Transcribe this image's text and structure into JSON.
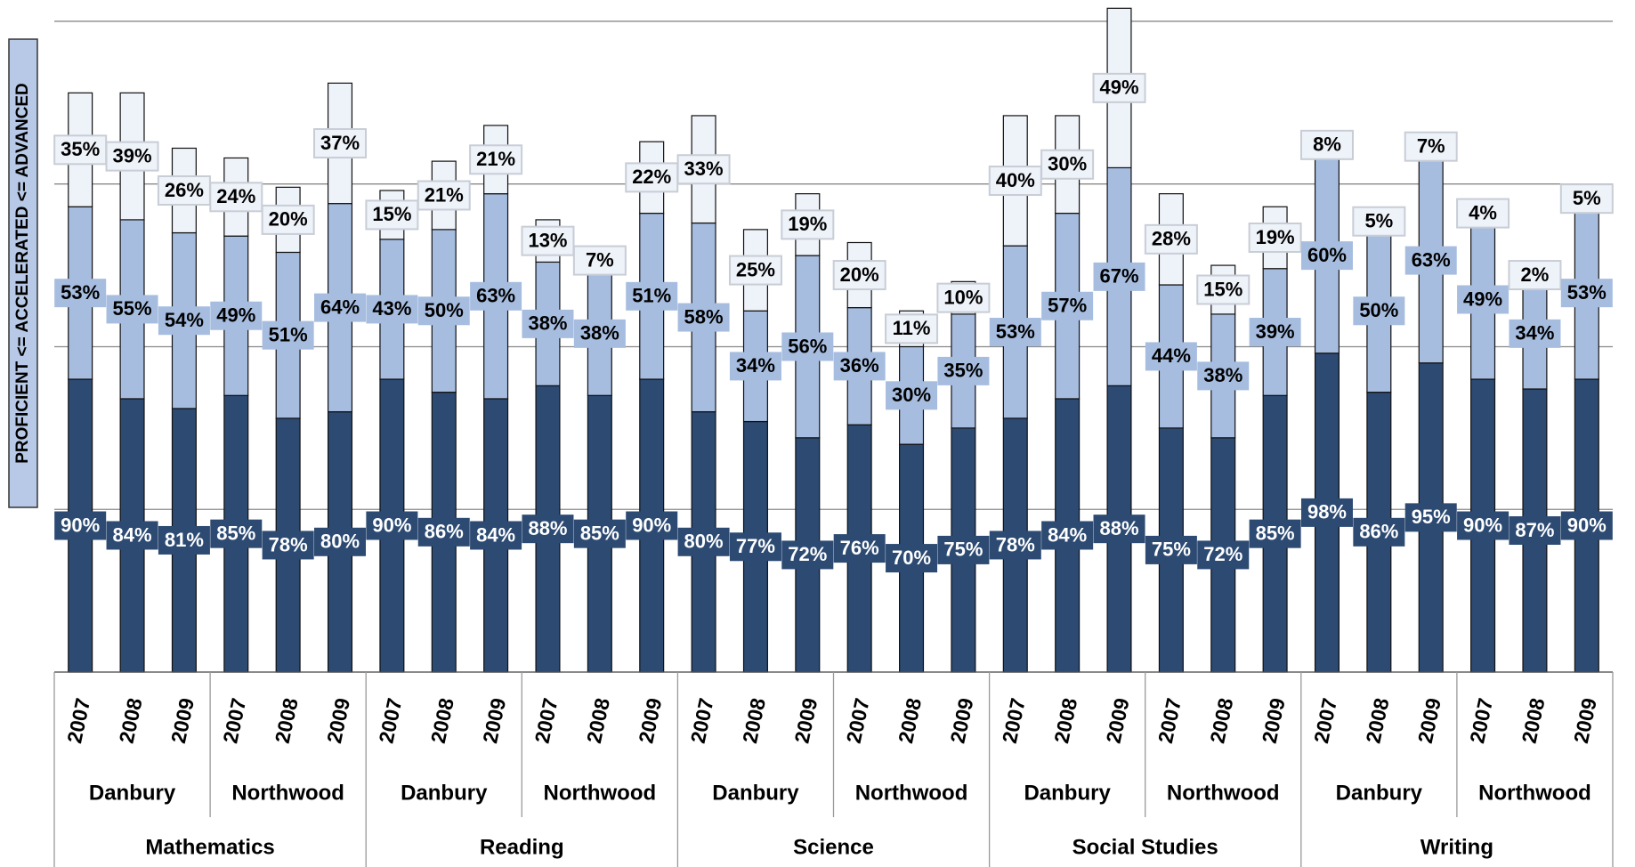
{
  "chart_data": {
    "type": "stacked-bar",
    "y_label": "PROFICIENT <= ACCELERATED <= ADVANCED",
    "categories": [
      "2007",
      "2008",
      "2009",
      "2007",
      "2008",
      "2009",
      "2007",
      "2008",
      "2009",
      "2007",
      "2008",
      "2009",
      "2007",
      "2008",
      "2009",
      "2007",
      "2008",
      "2009",
      "2007",
      "2008",
      "2009",
      "2007",
      "2008",
      "2009",
      "2007",
      "2008",
      "2009",
      "2007",
      "2008",
      "2009"
    ],
    "districts": [
      "Danbury",
      "Northwood",
      "Danbury",
      "Northwood",
      "Danbury",
      "Northwood",
      "Danbury",
      "Northwood",
      "Danbury",
      "Northwood"
    ],
    "subjects": [
      "Mathematics",
      "Reading",
      "Science",
      "Social Studies",
      "Writing"
    ],
    "series": [
      {
        "color": "#2c4a72",
        "label_text_color": "#ffffff",
        "values": [
          90,
          84,
          81,
          85,
          78,
          80,
          90,
          86,
          84,
          88,
          85,
          90,
          80,
          77,
          72,
          76,
          70,
          75,
          78,
          84,
          88,
          75,
          72,
          85,
          98,
          86,
          95,
          90,
          87,
          90
        ],
        "value_labels": [
          "90%",
          "84%",
          "81%",
          "85%",
          "78%",
          "80%",
          "90%",
          "86%",
          "84%",
          "88%",
          "85%",
          "90%",
          "80%",
          "77%",
          "72%",
          "76%",
          "70%",
          "75%",
          "78%",
          "84%",
          "88%",
          "75%",
          "72%",
          "85%",
          "98%",
          "86%",
          "95%",
          "90%",
          "87%",
          "90%"
        ]
      },
      {
        "color": "#a6bde0",
        "label_text_color": "#000000",
        "values": [
          53,
          55,
          54,
          49,
          51,
          64,
          43,
          50,
          63,
          38,
          38,
          51,
          58,
          34,
          56,
          36,
          30,
          35,
          53,
          57,
          67,
          44,
          38,
          39,
          60,
          50,
          63,
          49,
          34,
          53
        ],
        "value_labels": [
          "53%",
          "55%",
          "54%",
          "49%",
          "51%",
          "64%",
          "43%",
          "50%",
          "63%",
          "38%",
          "38%",
          "51%",
          "58%",
          "34%",
          "56%",
          "36%",
          "30%",
          "35%",
          "53%",
          "57%",
          "67%",
          "44%",
          "38%",
          "39%",
          "60%",
          "50%",
          "63%",
          "49%",
          "34%",
          "53%"
        ]
      },
      {
        "color": "#eef2f9",
        "label_text_color": "#000000",
        "values": [
          35,
          39,
          26,
          24,
          20,
          37,
          15,
          21,
          21,
          13,
          7,
          22,
          33,
          25,
          19,
          20,
          11,
          10,
          40,
          30,
          49,
          28,
          15,
          19,
          8,
          5,
          7,
          4,
          2,
          5
        ],
        "value_labels": [
          "35%",
          "39%",
          "26%",
          "24%",
          "20%",
          "37%",
          "15%",
          "21%",
          "21%",
          "13%",
          "7%",
          "22%",
          "33%",
          "25%",
          "19%",
          "20%",
          "11%",
          "10%",
          "40%",
          "30%",
          "49%",
          "28%",
          "15%",
          "19%",
          "8%",
          "5%",
          "7%",
          "4%",
          "2%",
          "5%"
        ]
      }
    ],
    "ylim": [
      0,
      206
    ],
    "yticks": [
      0,
      50,
      100,
      150,
      200
    ],
    "grid": true
  }
}
